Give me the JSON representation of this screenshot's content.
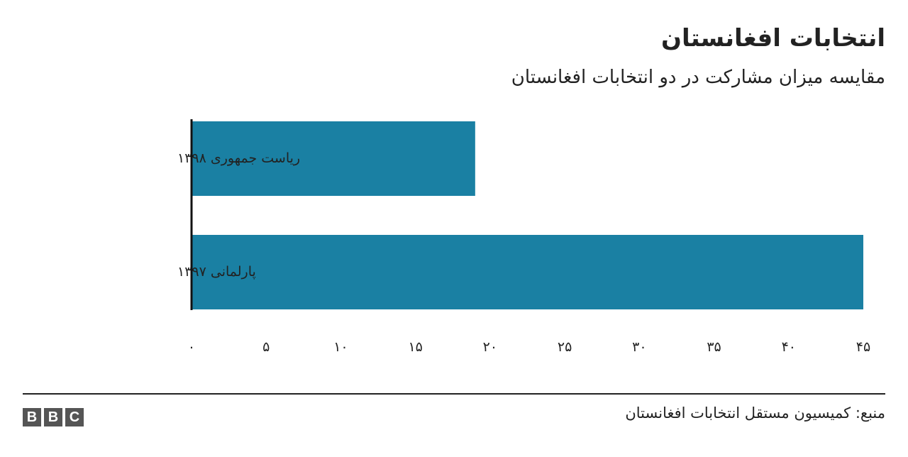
{
  "title": "انتخابات افغانستان",
  "subtitle": "مقایسه میزان مشارکت در دو انتخابات افغانستان",
  "source": "منبع: کمیسیون مستقل انتخابات افغانستان",
  "logo_letters": [
    "B",
    "B",
    "C"
  ],
  "colors": {
    "bar": "#1a80a3",
    "text": "#222222",
    "axis": "#111111"
  },
  "chart_data": {
    "type": "bar",
    "orientation": "horizontal",
    "categories": [
      "ریاست جمهوری ۱۳۹۸",
      "پارلمانی ۱۳۹۷"
    ],
    "values": [
      19,
      45
    ],
    "xlim": [
      0,
      45
    ],
    "xticks": [
      0,
      5,
      10,
      15,
      20,
      25,
      30,
      35,
      40,
      45
    ],
    "xtick_labels": [
      "۰",
      "۵",
      "۱۰",
      "۱۵",
      "۲۰",
      "۲۵",
      "۳۰",
      "۳۵",
      "۴۰",
      "۴۵"
    ],
    "grid": false,
    "legend": "none"
  }
}
